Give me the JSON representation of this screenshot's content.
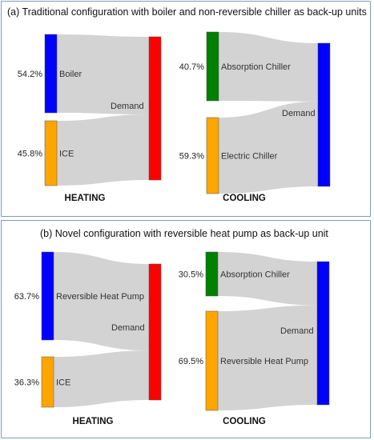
{
  "panels": [
    {
      "title": "(a) Traditional configuration with boiler and non-reversible chiller as back-up units",
      "heating": {
        "label": "HEATING",
        "sink": "Demand",
        "sources": [
          {
            "name": "Boiler",
            "percent": "54.2%",
            "value": 54.2,
            "color": "#0000ff"
          },
          {
            "name": "ICE",
            "percent": "45.8%",
            "value": 45.8,
            "color": "#ffa500"
          }
        ],
        "sink_color": "#ff0000"
      },
      "cooling": {
        "label": "COOLING",
        "sink": "Demand",
        "sources": [
          {
            "name": "Absorption Chiller",
            "percent": "40.7%",
            "value": 40.7,
            "color": "#008000"
          },
          {
            "name": "Electric Chiller",
            "percent": "59.3%",
            "value": 59.3,
            "color": "#ffa500"
          }
        ],
        "sink_color": "#0000ff"
      }
    },
    {
      "title": "(b) Novel configuration with reversible heat pump as back-up unit",
      "heating": {
        "label": "HEATING",
        "sink": "Demand",
        "sources": [
          {
            "name": "Reversible Heat Pump",
            "percent": "63.7%",
            "value": 63.7,
            "color": "#0000ff"
          },
          {
            "name": "ICE",
            "percent": "36.3%",
            "value": 36.3,
            "color": "#ffa500"
          }
        ],
        "sink_color": "#ff0000"
      },
      "cooling": {
        "label": "COOLING",
        "sink": "Demand",
        "sources": [
          {
            "name": "Absorption Chiller",
            "percent": "30.5%",
            "value": 30.5,
            "color": "#008000"
          },
          {
            "name": "Reversible Heat Pump",
            "percent": "69.5%",
            "value": 69.5,
            "color": "#ffa500"
          }
        ],
        "sink_color": "#0000ff"
      }
    }
  ]
}
